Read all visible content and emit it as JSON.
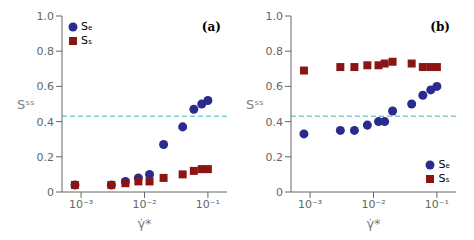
{
  "chart_data": [
    {
      "type": "scatter",
      "xlabel": "γ̇*",
      "ylabel": "Sˢˢ",
      "annotations": [
        "(a)"
      ],
      "log": "x",
      "grid": false,
      "legend": "top-left",
      "xlim": [
        0.0005,
        0.2
      ],
      "ylim": [
        0,
        1.0
      ],
      "xticks": [
        {
          "value": 0.001,
          "label": "10⁻³"
        },
        {
          "value": 0.01,
          "label": "10⁻²"
        },
        {
          "value": 0.1,
          "label": "10⁻¹"
        }
      ],
      "yticks": [
        0,
        0.2,
        0.4,
        0.6,
        0.8,
        {
          "value": 1.0,
          "label": "1.0"
        }
      ],
      "reference_lines": [
        {
          "y": 0.43,
          "color": "#7ecece",
          "line_style": "dashed"
        }
      ],
      "series": [
        {
          "name": "Sₑ",
          "color": "#2b2b8f",
          "marker": "circle",
          "x": [
            0.0008,
            0.003,
            0.005,
            0.008,
            0.012,
            0.02,
            0.04,
            0.06,
            0.08,
            0.1
          ],
          "values": [
            0.04,
            0.04,
            0.06,
            0.08,
            0.1,
            0.27,
            0.37,
            0.47,
            0.5,
            0.52
          ]
        },
        {
          "name": "Sₛ",
          "color": "#8b1515",
          "marker": "square",
          "x": [
            0.0008,
            0.003,
            0.005,
            0.008,
            0.012,
            0.02,
            0.04,
            0.06,
            0.08,
            0.1
          ],
          "values": [
            0.04,
            0.04,
            0.05,
            0.06,
            0.06,
            0.08,
            0.1,
            0.12,
            0.13,
            0.13
          ]
        }
      ]
    },
    {
      "type": "scatter",
      "xlabel": "γ̇*",
      "ylabel": "Sˢˢ",
      "annotations": [
        "(b)"
      ],
      "log": "x",
      "grid": false,
      "legend": "bottom-right",
      "xlim": [
        0.0005,
        0.2
      ],
      "ylim": [
        0,
        1.0
      ],
      "xticks": [
        {
          "value": 0.001,
          "label": "10⁻³"
        },
        {
          "value": 0.01,
          "label": "10⁻²"
        },
        {
          "value": 0.1,
          "label": "10⁻¹"
        }
      ],
      "yticks": [
        0,
        0.2,
        0.4,
        0.6,
        0.8,
        {
          "value": 1.0,
          "label": "1.0"
        }
      ],
      "reference_lines": [
        {
          "y": 0.43,
          "color": "#7ecece",
          "line_style": "dashed"
        }
      ],
      "series": [
        {
          "name": "Sₑ",
          "color": "#2b2b8f",
          "marker": "circle",
          "x": [
            0.0008,
            0.003,
            0.005,
            0.008,
            0.012,
            0.015,
            0.02,
            0.04,
            0.06,
            0.08,
            0.1
          ],
          "values": [
            0.33,
            0.35,
            0.35,
            0.38,
            0.4,
            0.4,
            0.46,
            0.5,
            0.55,
            0.58,
            0.6
          ]
        },
        {
          "name": "Sₛ",
          "color": "#8b1515",
          "marker": "square",
          "x": [
            0.0008,
            0.003,
            0.005,
            0.008,
            0.012,
            0.015,
            0.02,
            0.04,
            0.06,
            0.08,
            0.1
          ],
          "values": [
            0.69,
            0.71,
            0.71,
            0.72,
            0.72,
            0.73,
            0.74,
            0.73,
            0.71,
            0.71,
            0.71
          ]
        }
      ]
    }
  ]
}
